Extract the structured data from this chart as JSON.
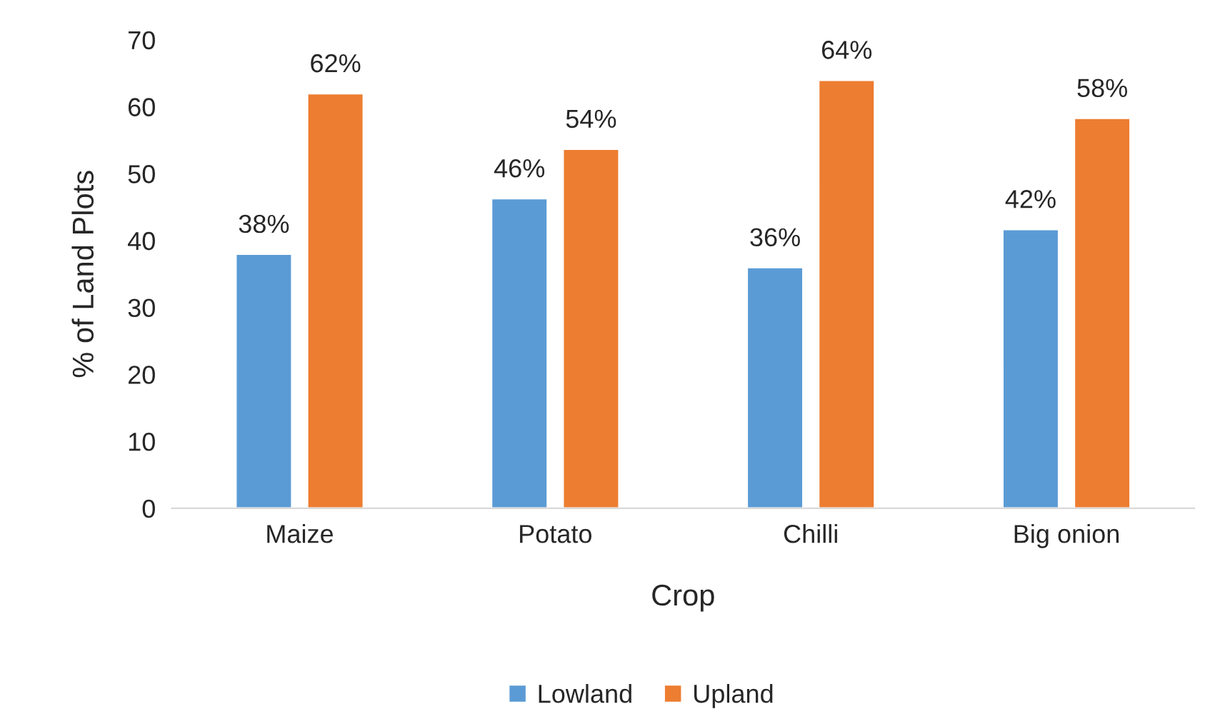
{
  "chart_data": {
    "type": "bar",
    "xlabel": "Crop",
    "ylabel": "% of Land Plots",
    "categories": [
      "Maize",
      "Potato",
      "Chilli",
      "Big onion"
    ],
    "series": [
      {
        "name": "Lowland",
        "color": "#5b9bd5",
        "values": [
          38,
          46.3,
          36,
          41.7
        ],
        "value_labels": [
          "38%",
          "46%",
          "36%",
          "42%"
        ]
      },
      {
        "name": "Upland",
        "color": "#ed7d31",
        "values": [
          62,
          53.7,
          64,
          58.3
        ],
        "value_labels": [
          "62%",
          "54%",
          "64%",
          "58%"
        ]
      }
    ],
    "ylim": [
      0,
      70
    ],
    "yticks": [
      0,
      10,
      20,
      30,
      40,
      50,
      60,
      70
    ],
    "grid": false,
    "legend": "bottom"
  }
}
